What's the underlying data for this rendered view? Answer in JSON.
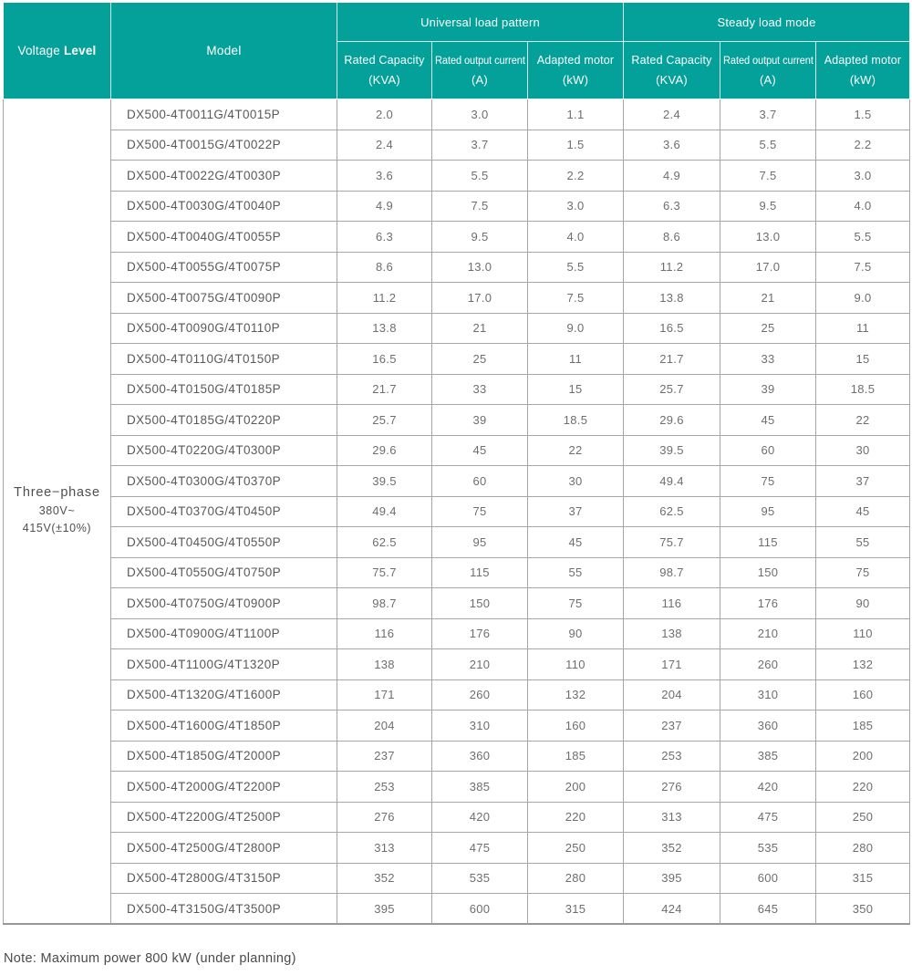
{
  "table": {
    "header": {
      "voltage_label": {
        "regular": "Voltage",
        "bold": "Level"
      },
      "model_label": "Model",
      "groups": [
        {
          "label": "Universal load pattern"
        },
        {
          "label": "Steady load mode"
        }
      ],
      "sub_columns": [
        {
          "line1": "Rated Capacity",
          "line2": "(KVA)"
        },
        {
          "line1": "Rated output current",
          "line2": "(A)"
        },
        {
          "line1": "Adapted motor",
          "line2": "(kW)"
        },
        {
          "line1": "Rated Capacity",
          "line2": "(KVA)"
        },
        {
          "line1": "Rated output current",
          "line2": "(A)"
        },
        {
          "line1": "Adapted motor",
          "line2": "(kW)"
        }
      ]
    },
    "voltage_cell": {
      "line1": "Three−phase",
      "line2": "380V~",
      "line3": "415V(±10%)"
    },
    "rows": [
      {
        "model": "DX500-4T0011G/4T0015P",
        "values": [
          "2.0",
          "3.0",
          "1.1",
          "2.4",
          "3.7",
          "1.5"
        ]
      },
      {
        "model": "DX500-4T0015G/4T0022P",
        "values": [
          "2.4",
          "3.7",
          "1.5",
          "3.6",
          "5.5",
          "2.2"
        ]
      },
      {
        "model": "DX500-4T0022G/4T0030P",
        "values": [
          "3.6",
          "5.5",
          "2.2",
          "4.9",
          "7.5",
          "3.0"
        ]
      },
      {
        "model": "DX500-4T0030G/4T0040P",
        "values": [
          "4.9",
          "7.5",
          "3.0",
          "6.3",
          "9.5",
          "4.0"
        ]
      },
      {
        "model": "DX500-4T0040G/4T0055P",
        "values": [
          "6.3",
          "9.5",
          "4.0",
          "8.6",
          "13.0",
          "5.5"
        ]
      },
      {
        "model": "DX500-4T0055G/4T0075P",
        "values": [
          "8.6",
          "13.0",
          "5.5",
          "11.2",
          "17.0",
          "7.5"
        ]
      },
      {
        "model": "DX500-4T0075G/4T0090P",
        "values": [
          "11.2",
          "17.0",
          "7.5",
          "13.8",
          "21",
          "9.0"
        ]
      },
      {
        "model": "DX500-4T0090G/4T0110P",
        "values": [
          "13.8",
          "21",
          "9.0",
          "16.5",
          "25",
          "11"
        ]
      },
      {
        "model": "DX500-4T0110G/4T0150P",
        "values": [
          "16.5",
          "25",
          "11",
          "21.7",
          "33",
          "15"
        ]
      },
      {
        "model": "DX500-4T0150G/4T0185P",
        "values": [
          "21.7",
          "33",
          "15",
          "25.7",
          "39",
          "18.5"
        ]
      },
      {
        "model": "DX500-4T0185G/4T0220P",
        "values": [
          "25.7",
          "39",
          "18.5",
          "29.6",
          "45",
          "22"
        ]
      },
      {
        "model": "DX500-4T0220G/4T0300P",
        "values": [
          "29.6",
          "45",
          "22",
          "39.5",
          "60",
          "30"
        ]
      },
      {
        "model": "DX500-4T0300G/4T0370P",
        "values": [
          "39.5",
          "60",
          "30",
          "49.4",
          "75",
          "37"
        ]
      },
      {
        "model": "DX500-4T0370G/4T0450P",
        "values": [
          "49.4",
          "75",
          "37",
          "62.5",
          "95",
          "45"
        ]
      },
      {
        "model": "DX500-4T0450G/4T0550P",
        "values": [
          "62.5",
          "95",
          "45",
          "75.7",
          "115",
          "55"
        ]
      },
      {
        "model": "DX500-4T0550G/4T0750P",
        "values": [
          "75.7",
          "115",
          "55",
          "98.7",
          "150",
          "75"
        ]
      },
      {
        "model": "DX500-4T0750G/4T0900P",
        "values": [
          "98.7",
          "150",
          "75",
          "116",
          "176",
          "90"
        ]
      },
      {
        "model": "DX500-4T0900G/4T1100P",
        "values": [
          "116",
          "176",
          "90",
          "138",
          "210",
          "110"
        ]
      },
      {
        "model": "DX500-4T1100G/4T1320P",
        "values": [
          "138",
          "210",
          "110",
          "171",
          "260",
          "132"
        ]
      },
      {
        "model": "DX500-4T1320G/4T1600P",
        "values": [
          "171",
          "260",
          "132",
          "204",
          "310",
          "160"
        ]
      },
      {
        "model": "DX500-4T1600G/4T1850P",
        "values": [
          "204",
          "310",
          "160",
          "237",
          "360",
          "185"
        ]
      },
      {
        "model": "DX500-4T1850G/4T2000P",
        "values": [
          "237",
          "360",
          "185",
          "253",
          "385",
          "200"
        ]
      },
      {
        "model": "DX500-4T2000G/4T2200P",
        "values": [
          "253",
          "385",
          "200",
          "276",
          "420",
          "220"
        ]
      },
      {
        "model": "DX500-4T2200G/4T2500P",
        "values": [
          "276",
          "420",
          "220",
          "313",
          "475",
          "250"
        ]
      },
      {
        "model": "DX500-4T2500G/4T2800P",
        "values": [
          "313",
          "475",
          "250",
          "352",
          "535",
          "280"
        ]
      },
      {
        "model": "DX500-4T2800G/4T3150P",
        "values": [
          "352",
          "535",
          "280",
          "395",
          "600",
          "315"
        ]
      },
      {
        "model": "DX500-4T3150G/4T3500P",
        "values": [
          "395",
          "600",
          "315",
          "424",
          "645",
          "350"
        ]
      }
    ]
  },
  "note": "Note: Maximum power 800 kW (under planning)",
  "colors": {
    "header_teal": "#04a19a",
    "grid_gray": "#a6a6a6",
    "number_text": "#6e6e6e",
    "label_text": "#4f4f4f"
  }
}
